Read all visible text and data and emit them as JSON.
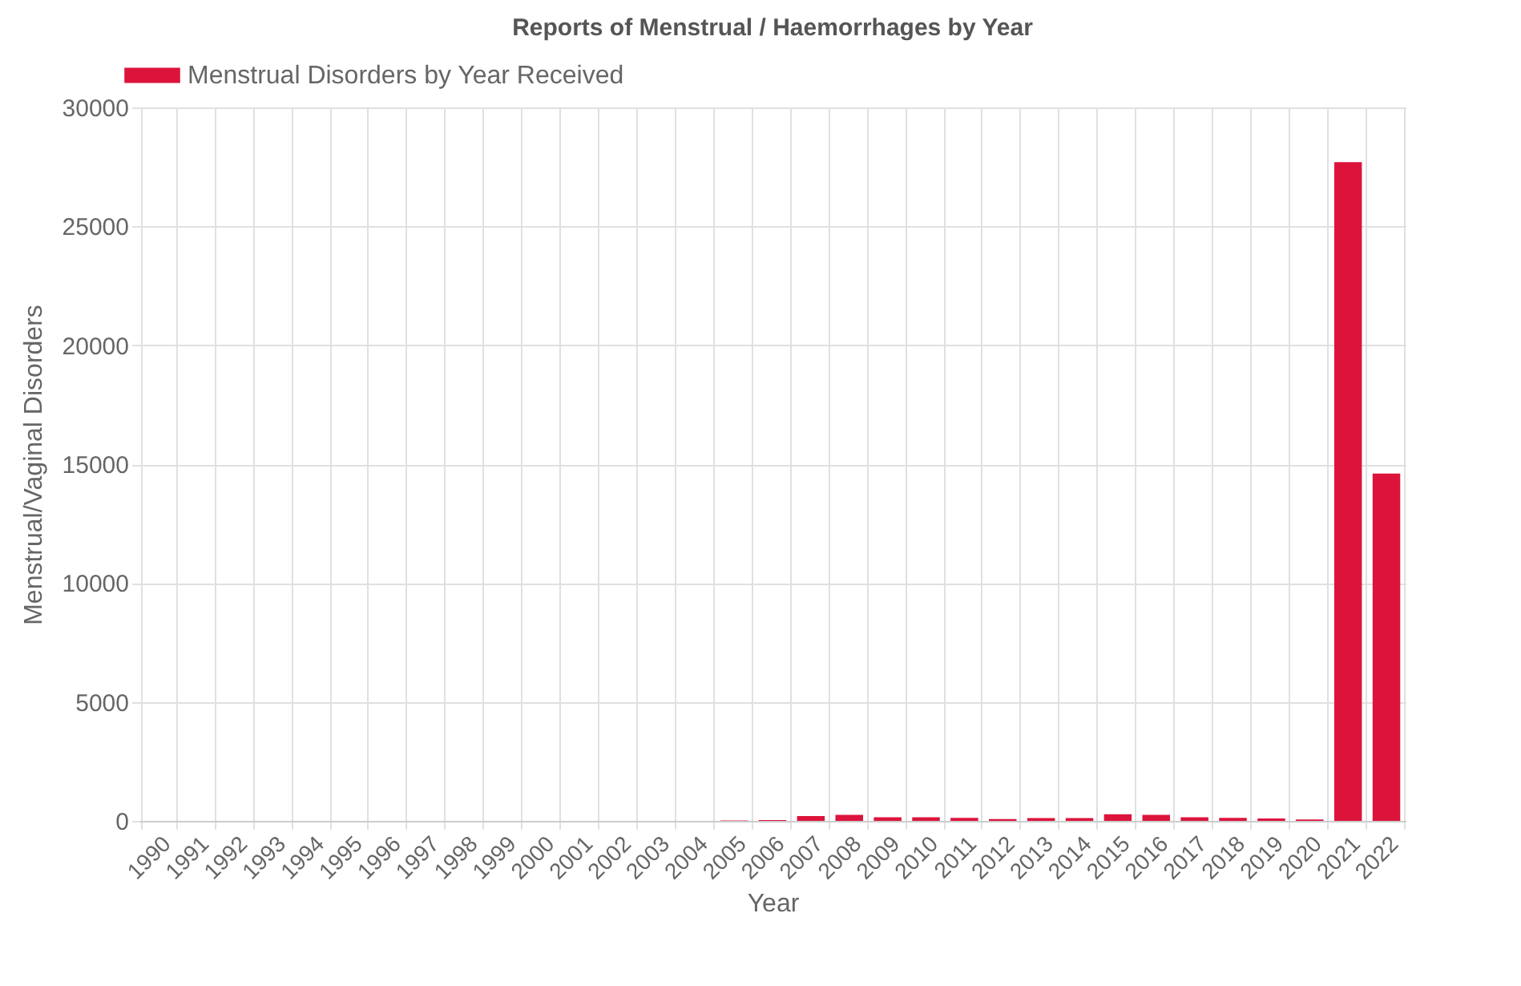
{
  "chart_data": {
    "type": "bar",
    "title": "Reports of Menstrual / Haemorrhages by Year",
    "xlabel": "Year",
    "ylabel": "Menstrual/Vaginal Disorders",
    "categories": [
      "1990",
      "1991",
      "1992",
      "1993",
      "1994",
      "1995",
      "1996",
      "1997",
      "1998",
      "1999",
      "2000",
      "2001",
      "2002",
      "2003",
      "2004",
      "2005",
      "2006",
      "2007",
      "2008",
      "2009",
      "2010",
      "2011",
      "2012",
      "2013",
      "2014",
      "2015",
      "2016",
      "2017",
      "2018",
      "2019",
      "2020",
      "2021",
      "2022"
    ],
    "series": [
      {
        "name": "Menstrual Disorders by Year Received",
        "color": "#dc143c",
        "values": [
          0,
          0,
          0,
          0,
          0,
          0,
          0,
          0,
          0,
          0,
          0,
          0,
          0,
          0,
          0,
          20,
          30,
          200,
          250,
          150,
          150,
          130,
          80,
          120,
          120,
          280,
          250,
          150,
          130,
          100,
          60,
          27700,
          14600
        ]
      }
    ],
    "ylim": [
      0,
      30000
    ],
    "yticks": [
      0,
      5000,
      10000,
      15000,
      20000,
      25000,
      30000
    ],
    "grid": true,
    "legend": "top"
  }
}
